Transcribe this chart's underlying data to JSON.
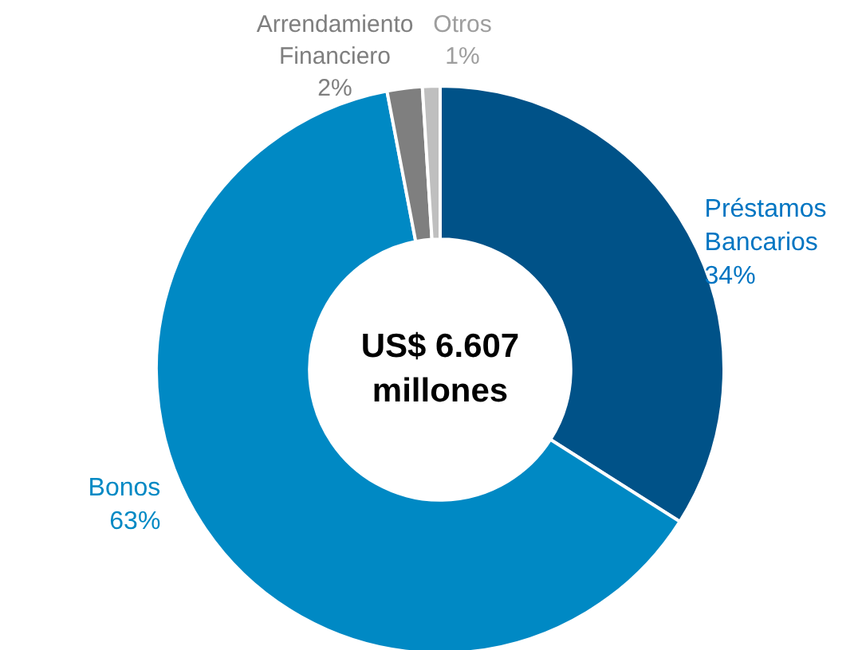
{
  "chart_data": {
    "type": "donut",
    "title": "US$ 6.607 millones",
    "categories": [
      "Préstamos Bancarios",
      "Bonos",
      "Arrendamiento Financiero",
      "Otros"
    ],
    "values": [
      34,
      63,
      2,
      1
    ],
    "value_labels": [
      "34%",
      "63%",
      "2%",
      "1%"
    ],
    "colors": [
      "#005288",
      "#0089c4",
      "#7f7f7f",
      "#bfbfbf"
    ]
  }
}
